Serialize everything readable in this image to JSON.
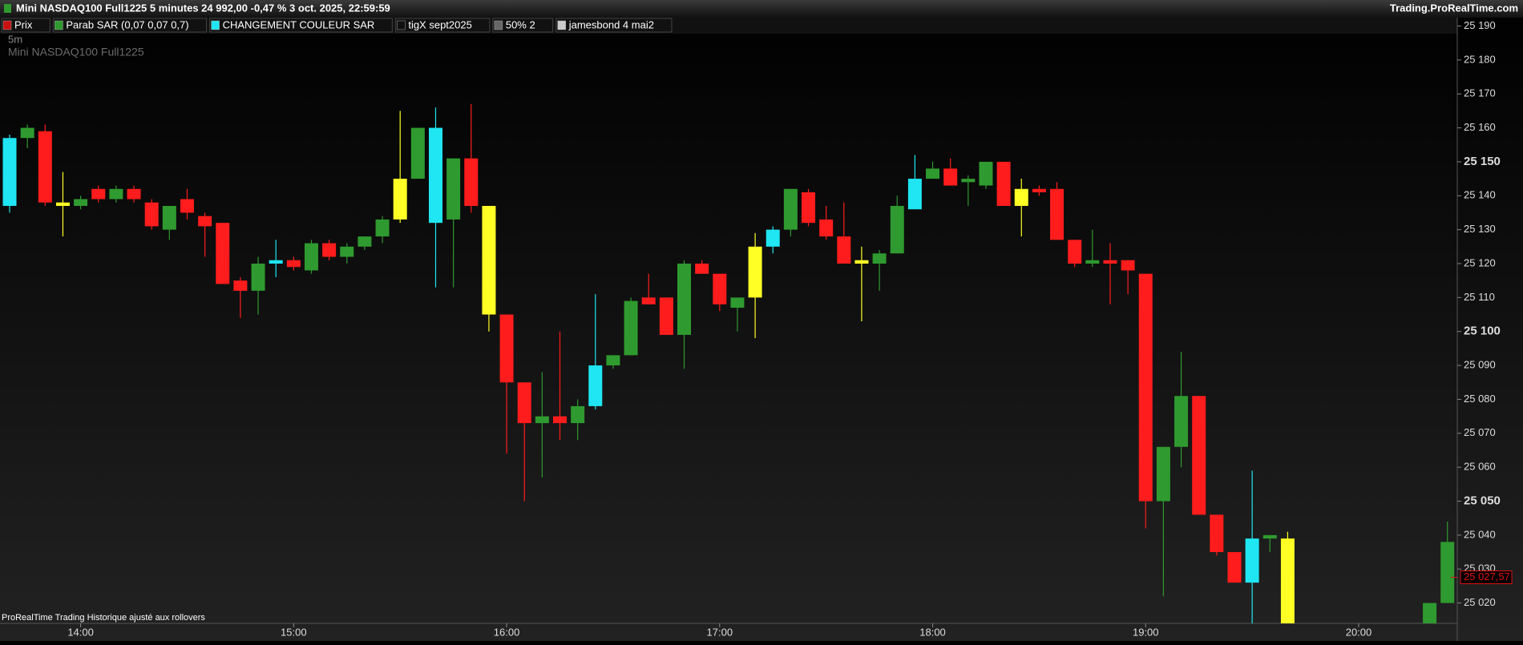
{
  "chart_data": {
    "type": "candlestick",
    "header": "Mini NASDAQ100 Full1225 5 minutes 24 992,00 -0,47 % 3 oct. 2025, 22:59:59",
    "site": "Trading.ProRealTime.com",
    "indicators": [
      "Prix",
      "Parab SAR (0,07 0,07 0,7)",
      "CHANGEMENT COULEUR SAR",
      "tigX sept2025",
      "50% 2",
      "jamesbond 4 mai2"
    ],
    "timeframe": "5m",
    "instrument": "Mini NASDAQ100 Full1225",
    "footer": "ProRealTime Trading  Historique ajusté aux rollovers",
    "last_price": {
      "value": 25027.57,
      "label": "25 027,57"
    },
    "ylim": [
      25014,
      25192
    ],
    "yticks": [
      {
        "value": 25190,
        "label": "25 190"
      },
      {
        "value": 25180,
        "label": "25 180"
      },
      {
        "value": 25170,
        "label": "25 170"
      },
      {
        "value": 25160,
        "label": "25 160"
      },
      {
        "value": 25150,
        "label": "25 150"
      },
      {
        "value": 25140,
        "label": "25 140"
      },
      {
        "value": 25130,
        "label": "25 130"
      },
      {
        "value": 25120,
        "label": "25 120"
      },
      {
        "value": 25110,
        "label": "25 110"
      },
      {
        "value": 25100,
        "label": "25 100"
      },
      {
        "value": 25090,
        "label": "25 090"
      },
      {
        "value": 25080,
        "label": "25 080"
      },
      {
        "value": 25070,
        "label": "25 070"
      },
      {
        "value": 25060,
        "label": "25 060"
      },
      {
        "value": 25050,
        "label": "25 050"
      },
      {
        "value": 25040,
        "label": "25 040"
      },
      {
        "value": 25030,
        "label": "25 030"
      },
      {
        "value": 25020,
        "label": "25 020"
      }
    ],
    "xticks": [
      "14:00",
      "15:00",
      "16:00",
      "17:00",
      "18:00",
      "19:00",
      "20:00"
    ],
    "x": [
      "13:40",
      "13:45",
      "13:50",
      "13:55",
      "14:00",
      "14:05",
      "14:10",
      "14:15",
      "14:20",
      "14:25",
      "14:30",
      "14:35",
      "14:40",
      "14:45",
      "14:50",
      "14:55",
      "15:00",
      "15:05",
      "15:10",
      "15:15",
      "15:20",
      "15:25",
      "15:30",
      "15:35",
      "15:40",
      "15:45",
      "15:50",
      "15:55",
      "16:00",
      "16:05",
      "16:10",
      "16:15",
      "16:20",
      "16:25",
      "16:30",
      "16:35",
      "16:40",
      "16:45",
      "16:50",
      "16:55",
      "17:00",
      "17:05",
      "17:10",
      "17:15",
      "17:20",
      "17:25",
      "17:30",
      "17:35",
      "17:40",
      "17:45",
      "17:50",
      "17:55",
      "18:00",
      "18:05",
      "18:10",
      "18:15",
      "18:20",
      "18:25",
      "18:30",
      "18:35",
      "18:40",
      "18:45",
      "18:50",
      "18:55",
      "19:00",
      "19:05",
      "19:10",
      "19:15",
      "19:20",
      "19:25",
      "19:30",
      "19:35",
      "19:40",
      "20:20",
      "20:25"
    ],
    "open": [
      25137,
      25157,
      25159,
      25138,
      25137,
      25142,
      25139,
      25142,
      25138,
      25130,
      25139,
      25134,
      25132,
      25115,
      25112,
      25120,
      25121,
      25118,
      25126,
      25122,
      25125,
      25128,
      25133,
      25145,
      25160,
      25133,
      25151,
      25137,
      25105,
      25085,
      25073,
      25075,
      25073,
      25078,
      25090,
      25093,
      25110,
      25110,
      25099,
      25120,
      25117,
      25107,
      25110,
      25125,
      25130,
      25141,
      25133,
      25128,
      25120,
      25120,
      25123,
      25136,
      25145,
      25148,
      25144,
      25143,
      25150,
      25137,
      25142,
      25142,
      25127,
      25120,
      25121,
      25121,
      25117,
      25050,
      25066,
      25081,
      25046,
      25035,
      25026,
      25039,
      25039,
      25014,
      25020
    ],
    "high": [
      25158,
      25161,
      25161,
      25147,
      25140,
      25143,
      25143,
      25143,
      25139,
      25137,
      25142,
      25135,
      25132,
      25116,
      25122,
      25127,
      25122,
      25127,
      25127,
      25126,
      25128,
      25134,
      25165,
      25160,
      25166,
      25150,
      25167,
      25137,
      25105,
      25085,
      25088,
      25100,
      25080,
      25111,
      25092,
      25110,
      25117,
      25110,
      25121,
      25121,
      25117,
      25110,
      25129,
      25131,
      25142,
      25142,
      25137,
      25138,
      25125,
      25124,
      25140,
      25152,
      25150,
      25151,
      25146,
      25150,
      25150,
      25145,
      25143,
      25144,
      25127,
      25130,
      25126,
      25121,
      25117,
      25065,
      25094,
      25081,
      25046,
      25035,
      25059,
      25040,
      25041,
      25020,
      25044
    ],
    "low": [
      25135,
      25154,
      25137,
      25128,
      25136,
      25138,
      25138,
      25138,
      25130,
      25127,
      25133,
      25122,
      25114,
      25104,
      25105,
      25116,
      25118,
      25117,
      25121,
      25120,
      25124,
      25126,
      25132,
      25145,
      25113,
      25113,
      25135,
      25100,
      25064,
      25050,
      25057,
      25068,
      25068,
      25077,
      25089,
      25093,
      25108,
      25099,
      25089,
      25117,
      25106,
      25100,
      25098,
      25123,
      25128,
      25131,
      25127,
      25120,
      25103,
      25112,
      25123,
      25136,
      25145,
      25143,
      25137,
      25142,
      25137,
      25128,
      25140,
      25127,
      25119,
      25119,
      25108,
      25111,
      25042,
      25022,
      25060,
      25046,
      25034,
      25026,
      25014,
      25035,
      25014,
      25010,
      25020
    ],
    "close": [
      25157,
      25160,
      25138,
      25137,
      25139,
      25139,
      25142,
      25139,
      25131,
      25137,
      25135,
      25131,
      25114,
      25112,
      25120,
      25121,
      25119,
      25126,
      25122,
      25125,
      25128,
      25133,
      25145,
      25160,
      25132,
      25151,
      25137,
      25105,
      25085,
      25073,
      25075,
      25073,
      25078,
      25090,
      25093,
      25109,
      25108,
      25099,
      25120,
      25117,
      25108,
      25110,
      25125,
      25130,
      25142,
      25132,
      25128,
      25120,
      25121,
      25123,
      25137,
      25145,
      25148,
      25143,
      25145,
      25150,
      25137,
      25142,
      25141,
      25127,
      25120,
      25121,
      25120,
      25118,
      25050,
      25066,
      25081,
      25046,
      25035,
      25026,
      25039,
      25040,
      25014,
      25020,
      25038
    ],
    "colors": [
      "#1fe6f2",
      "#2f9a2f",
      "#ff1c1c",
      "#ffff26",
      "#2f9a2f",
      "#ff1c1c",
      "#2f9a2f",
      "#ff1c1c",
      "#ff1c1c",
      "#2f9a2f",
      "#ff1c1c",
      "#ff1c1c",
      "#ff1c1c",
      "#ff1c1c",
      "#2f9a2f",
      "#1fe6f2",
      "#ff1c1c",
      "#2f9a2f",
      "#ff1c1c",
      "#2f9a2f",
      "#2f9a2f",
      "#2f9a2f",
      "#ffff26",
      "#2f9a2f",
      "#1fe6f2",
      "#2f9a2f",
      "#ff1c1c",
      "#ffff26",
      "#ff1c1c",
      "#ff1c1c",
      "#2f9a2f",
      "#ff1c1c",
      "#2f9a2f",
      "#1fe6f2",
      "#2f9a2f",
      "#2f9a2f",
      "#ff1c1c",
      "#ff1c1c",
      "#2f9a2f",
      "#ff1c1c",
      "#ff1c1c",
      "#2f9a2f",
      "#ffff26",
      "#1fe6f2",
      "#2f9a2f",
      "#ff1c1c",
      "#ff1c1c",
      "#ff1c1c",
      "#ffff26",
      "#2f9a2f",
      "#2f9a2f",
      "#1fe6f2",
      "#2f9a2f",
      "#ff1c1c",
      "#2f9a2f",
      "#2f9a2f",
      "#ff1c1c",
      "#ffff26",
      "#ff1c1c",
      "#ff1c1c",
      "#ff1c1c",
      "#2f9a2f",
      "#ff1c1c",
      "#ff1c1c",
      "#ff1c1c",
      "#2f9a2f",
      "#2f9a2f",
      "#ff1c1c",
      "#ff1c1c",
      "#ff1c1c",
      "#1fe6f2",
      "#2f9a2f",
      "#ffff26",
      "#2f9a2f",
      "#2f9a2f"
    ],
    "last_price_color": "#e01010"
  }
}
